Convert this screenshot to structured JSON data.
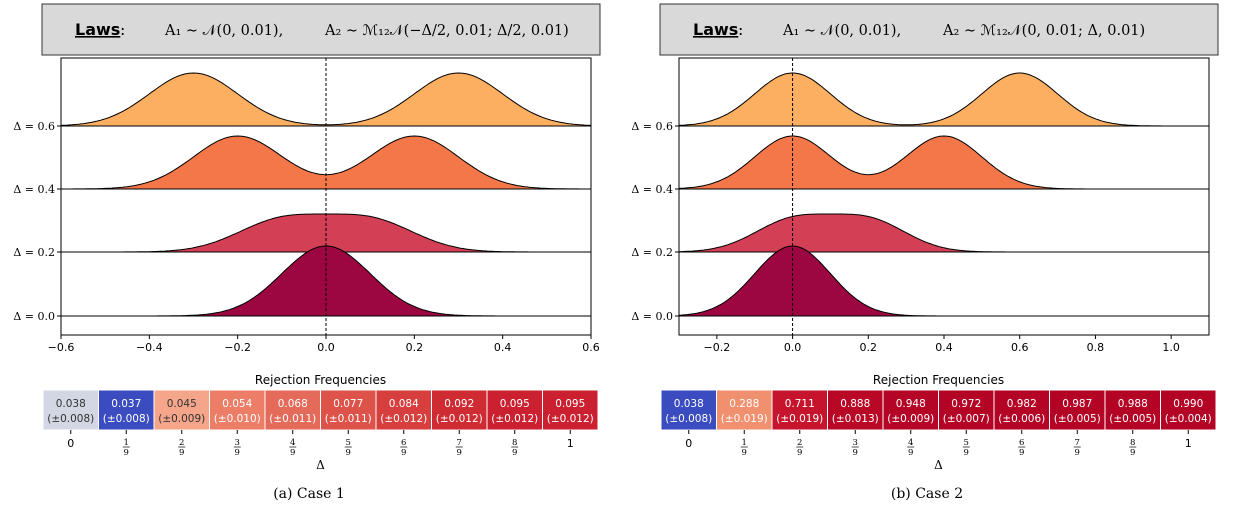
{
  "panels": [
    {
      "id": "a",
      "laws_label": "Laws",
      "law1": "A₁ ∼ 𝒩(0, 0.01),",
      "law2": "A₂ ∼ ℳ₁₂𝒩(−Δ/2, 0.01; Δ/2, 0.01)",
      "caption": "(a) Case 1",
      "heatmap_title": "Rejection Frequencies",
      "heatmap_xlabel": "Δ",
      "chart_data": {
        "type": "ridgeline",
        "x_ticks": [
          "−0.6",
          "−0.4",
          "−0.2",
          "0.0",
          "0.2",
          "0.4",
          "0.6"
        ],
        "xlim": [
          -0.6,
          0.6
        ],
        "vline_x": 0.0,
        "rows": [
          {
            "label": "Δ = 0.6",
            "delta": 0.6,
            "mixture_means": [
              -0.3,
              0.3
            ],
            "color": "#fcae61"
          },
          {
            "label": "Δ = 0.4",
            "delta": 0.4,
            "mixture_means": [
              -0.2,
              0.2
            ],
            "color": "#f4774a"
          },
          {
            "label": "Δ = 0.2",
            "delta": 0.2,
            "mixture_means": [
              -0.1,
              0.1
            ],
            "color": "#d33f55"
          },
          {
            "label": "Δ = 0.0",
            "delta": 0.0,
            "mixture_means": [
              0.0,
              0.0
            ],
            "color": "#9c0641"
          }
        ],
        "sd": 0.1,
        "heatmap": {
          "categories": [
            "0",
            "1/9",
            "2/9",
            "3/9",
            "4/9",
            "5/9",
            "6/9",
            "7/9",
            "8/9",
            "1"
          ],
          "values": [
            0.038,
            0.037,
            0.045,
            0.054,
            0.068,
            0.077,
            0.084,
            0.092,
            0.095,
            0.095
          ],
          "errors": [
            "(±0.008)",
            "(±0.008)",
            "(±0.009)",
            "(±0.010)",
            "(±0.011)",
            "(±0.011)",
            "(±0.012)",
            "(±0.012)",
            "(±0.012)",
            "(±0.012)"
          ],
          "value_labels": [
            "0.038",
            "0.037",
            "0.045",
            "0.054",
            "0.068",
            "0.077",
            "0.084",
            "0.092",
            "0.095",
            "0.095"
          ],
          "colors": [
            "#d3d7e3",
            "#3a4cc0",
            "#f4a58a",
            "#ec7e68",
            "#e46a5a",
            "#dd5249",
            "#d63f3d",
            "#cf2b33",
            "#cb2030",
            "#cb2030"
          ],
          "text_colors": [
            "#333333",
            "#ffffff",
            "#333333",
            "#ffffff",
            "#ffffff",
            "#ffffff",
            "#ffffff",
            "#ffffff",
            "#ffffff",
            "#ffffff"
          ]
        }
      }
    },
    {
      "id": "b",
      "laws_label": "Laws",
      "law1": "A₁ ∼ 𝒩(0, 0.01),",
      "law2": "A₂ ∼ ℳ₁₂𝒩(0, 0.01; Δ, 0.01)",
      "caption": "(b) Case 2",
      "heatmap_title": "Rejection Frequencies",
      "heatmap_xlabel": "Δ",
      "chart_data": {
        "type": "ridgeline",
        "x_ticks": [
          "−0.2",
          "0.0",
          "0.2",
          "0.4",
          "0.6",
          "0.8",
          "1.0"
        ],
        "xlim": [
          -0.3,
          1.1
        ],
        "vline_x": 0.0,
        "rows": [
          {
            "label": "Δ = 0.6",
            "delta": 0.6,
            "mixture_means": [
              0.0,
              0.6
            ],
            "color": "#fcae61"
          },
          {
            "label": "Δ = 0.4",
            "delta": 0.4,
            "mixture_means": [
              0.0,
              0.4
            ],
            "color": "#f4774a"
          },
          {
            "label": "Δ = 0.2",
            "delta": 0.2,
            "mixture_means": [
              0.0,
              0.2
            ],
            "color": "#d33f55"
          },
          {
            "label": "Δ = 0.0",
            "delta": 0.0,
            "mixture_means": [
              0.0,
              0.0
            ],
            "color": "#9c0641"
          }
        ],
        "sd": 0.1,
        "heatmap": {
          "categories": [
            "0",
            "1/9",
            "2/9",
            "3/9",
            "4/9",
            "5/9",
            "6/9",
            "7/9",
            "8/9",
            "1"
          ],
          "values": [
            0.038,
            0.288,
            0.711,
            0.888,
            0.948,
            0.972,
            0.982,
            0.987,
            0.988,
            0.99
          ],
          "errors": [
            "(±0.008)",
            "(±0.019)",
            "(±0.019)",
            "(±0.013)",
            "(±0.009)",
            "(±0.007)",
            "(±0.006)",
            "(±0.005)",
            "(±0.005)",
            "(±0.004)"
          ],
          "value_labels": [
            "0.038",
            "0.288",
            "0.711",
            "0.888",
            "0.948",
            "0.972",
            "0.982",
            "0.987",
            "0.988",
            "0.990"
          ],
          "colors": [
            "#3a4cc0",
            "#f1906e",
            "#c5142b",
            "#b90826",
            "#b50526",
            "#b40426",
            "#b40426",
            "#b40426",
            "#b40426",
            "#b40426"
          ],
          "text_colors": [
            "#ffffff",
            "#ffffff",
            "#ffffff",
            "#ffffff",
            "#ffffff",
            "#ffffff",
            "#ffffff",
            "#ffffff",
            "#ffffff",
            "#ffffff"
          ]
        }
      }
    }
  ]
}
